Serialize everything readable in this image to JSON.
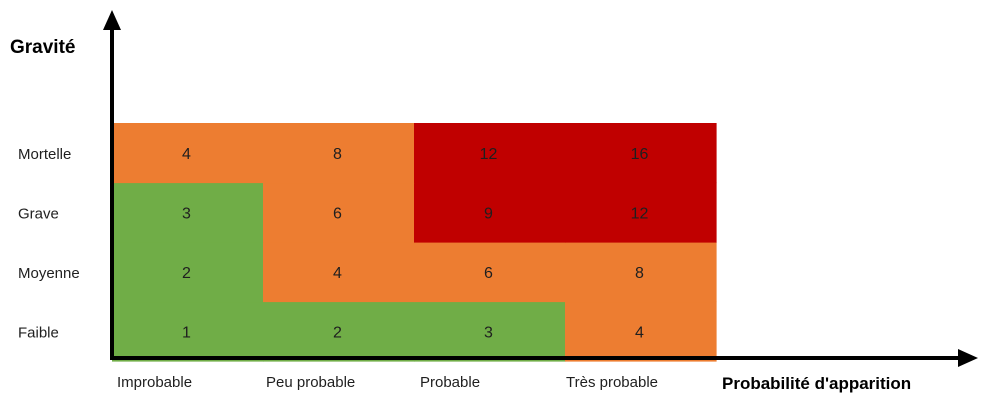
{
  "chart_data": {
    "type": "heatmap",
    "ylabel": "Gravité",
    "xlabel": "Probabilité d'apparition",
    "x_categories": [
      "Improbable",
      "Peu probable",
      "Probable",
      "Très probable"
    ],
    "y_categories": [
      "Faible",
      "Moyenne",
      "Grave",
      "Mortelle"
    ],
    "values": [
      [
        1,
        2,
        3,
        4
      ],
      [
        2,
        4,
        6,
        8
      ],
      [
        3,
        6,
        9,
        12
      ],
      [
        4,
        8,
        12,
        16
      ]
    ],
    "zones": [
      [
        0,
        0,
        0,
        1
      ],
      [
        0,
        1,
        1,
        1
      ],
      [
        0,
        1,
        2,
        2
      ],
      [
        1,
        1,
        2,
        2
      ]
    ],
    "zone_colors": [
      "#70ad47",
      "#ed7d31",
      "#c00000"
    ]
  }
}
